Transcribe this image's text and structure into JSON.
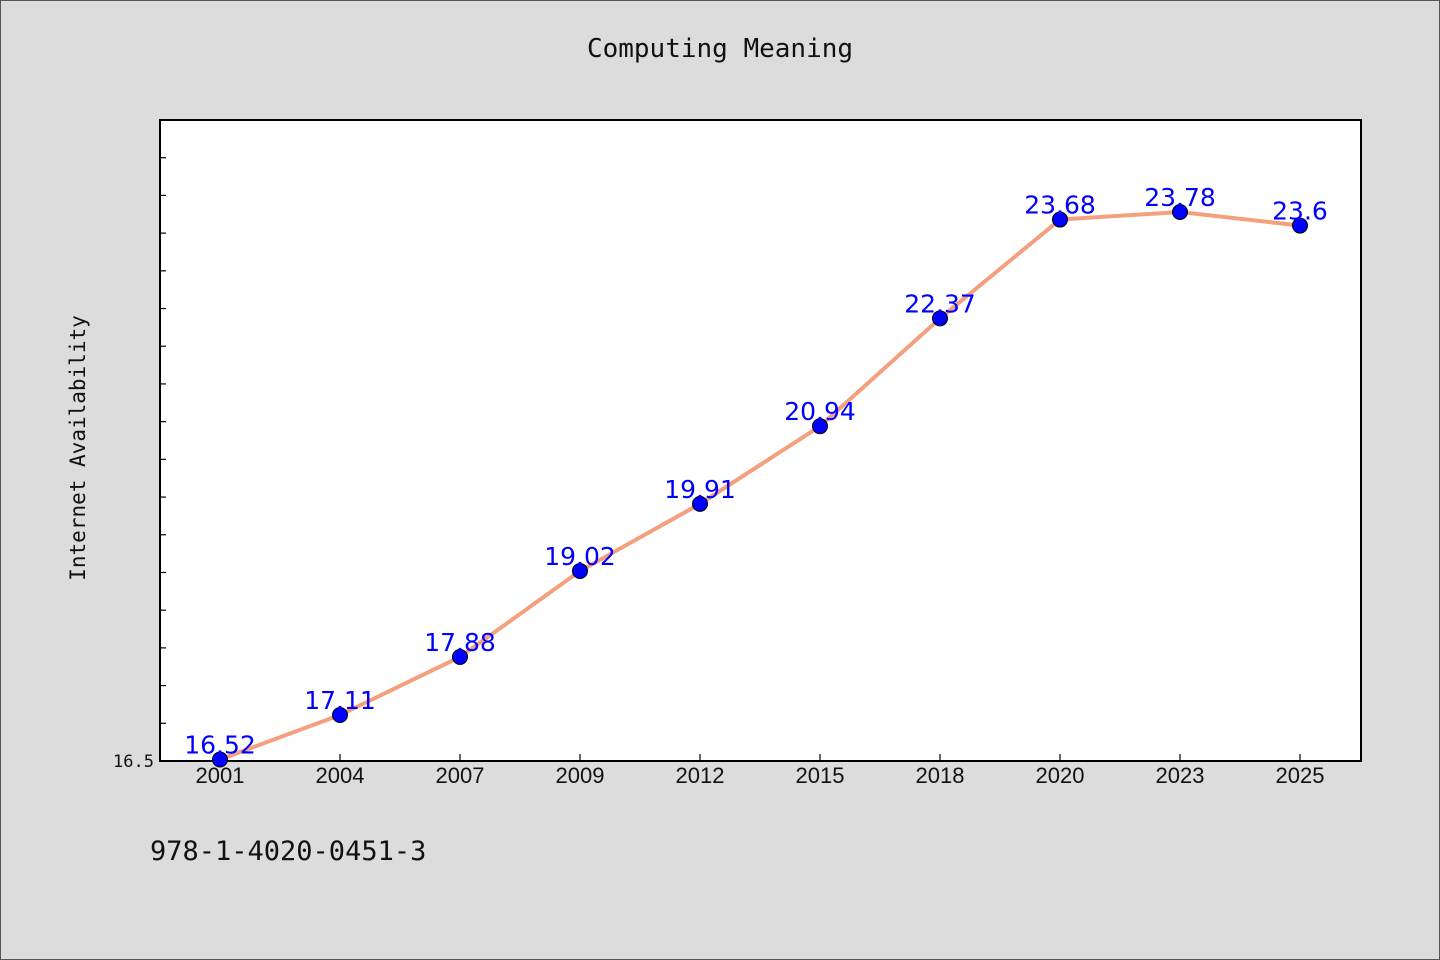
{
  "chart_data": {
    "type": "line",
    "title": "Computing Meaning",
    "xlabel": "",
    "ylabel": "Internet Availability",
    "categories": [
      "2001",
      "2004",
      "2007",
      "2009",
      "2012",
      "2015",
      "2018",
      "2020",
      "2023",
      "2025"
    ],
    "series": [
      {
        "values": [
          16.52,
          17.11,
          17.88,
          19.02,
          19.91,
          20.94,
          22.37,
          23.68,
          23.78,
          23.6
        ],
        "line_color": "#f4a07e",
        "marker_color": "#0000ff"
      }
    ],
    "data_labels": [
      "16.52",
      "17.11",
      "17.88",
      "19.02",
      "19.91",
      "20.94",
      "22.37",
      "23.68",
      "23.78",
      "23.6"
    ],
    "y_tick_labels": [
      "16.5"
    ],
    "ylim": [
      16.5,
      25.0
    ],
    "grid": false,
    "legend": "none"
  },
  "footer_text": "978-1-4020-0451-3",
  "colors": {
    "background": "#dcdcdc",
    "plot_area": "#ffffff",
    "line": "#f4a07e",
    "marker": "#0000ff",
    "data_label": "#0000ff"
  }
}
